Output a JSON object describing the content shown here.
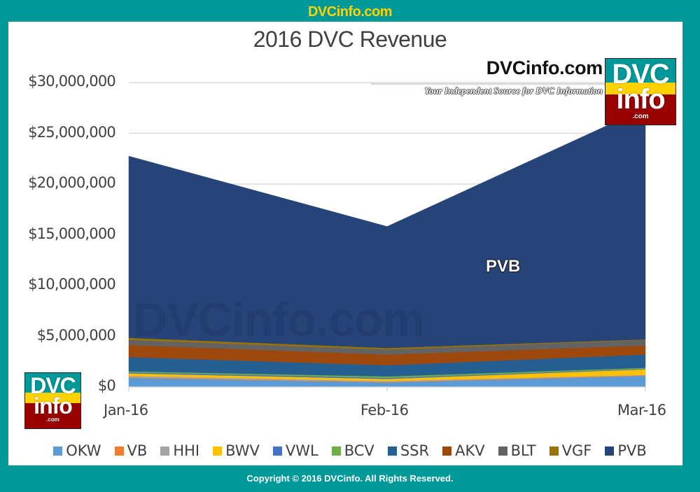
{
  "banner": {
    "site": "DVCinfo.com"
  },
  "brand": {
    "name": "DVCinfo.com",
    "tagline": "Your Independent Source for DVC Information",
    "logo": {
      "line1": "DVC",
      "line2": "info",
      "line3": ".com"
    }
  },
  "watermark": "DVCinfo.com",
  "footer": {
    "copyright": "Copyright © 2016 DVCinfo. All Rights Reserved."
  },
  "colors": {
    "frame": "#009999",
    "banner_text": "#FFD200",
    "logo_teal": "#009999",
    "logo_yellow": "#FFD200",
    "logo_red": "#990000"
  },
  "chart_data": {
    "type": "area",
    "stacked": true,
    "title": "2016 DVC Revenue",
    "xlabel": "",
    "ylabel": "",
    "categories": [
      "Jan-16",
      "Feb-16",
      "Mar-16"
    ],
    "y_ticks": [
      "$0",
      "$5,000,000",
      "$10,000,000",
      "$15,000,000",
      "$20,000,000",
      "$25,000,000",
      "$30,000,000"
    ],
    "ylim": [
      0,
      30000000
    ],
    "grid": true,
    "legend_position": "bottom",
    "annotations": [
      {
        "text": "PVB",
        "series": "PVB"
      }
    ],
    "series": [
      {
        "name": "OKW",
        "color": "#5B9BD5",
        "values": [
          900000,
          450000,
          1100000
        ]
      },
      {
        "name": "VB",
        "color": "#ED7D31",
        "values": [
          50000,
          50000,
          50000
        ]
      },
      {
        "name": "HHI",
        "color": "#A5A5A5",
        "values": [
          150000,
          100000,
          50000
        ]
      },
      {
        "name": "BWV",
        "color": "#FFC000",
        "values": [
          250000,
          200000,
          550000
        ]
      },
      {
        "name": "VWL",
        "color": "#4472C4",
        "values": [
          100000,
          100000,
          50000
        ]
      },
      {
        "name": "BCV",
        "color": "#70AD47",
        "values": [
          100000,
          150000,
          100000
        ]
      },
      {
        "name": "SSR",
        "color": "#255E91",
        "values": [
          1400000,
          1100000,
          1300000
        ]
      },
      {
        "name": "AKV",
        "color": "#9E480E",
        "values": [
          1200000,
          1050000,
          900000
        ]
      },
      {
        "name": "BLT",
        "color": "#636363",
        "values": [
          500000,
          500000,
          550000
        ]
      },
      {
        "name": "VGF",
        "color": "#997300",
        "values": [
          200000,
          150000,
          50000
        ]
      },
      {
        "name": "PVB",
        "color": "#264478",
        "values": [
          17900000,
          11970000,
          22800000
        ]
      }
    ],
    "totals": [
      22750000,
      15820000,
      27500000
    ]
  }
}
